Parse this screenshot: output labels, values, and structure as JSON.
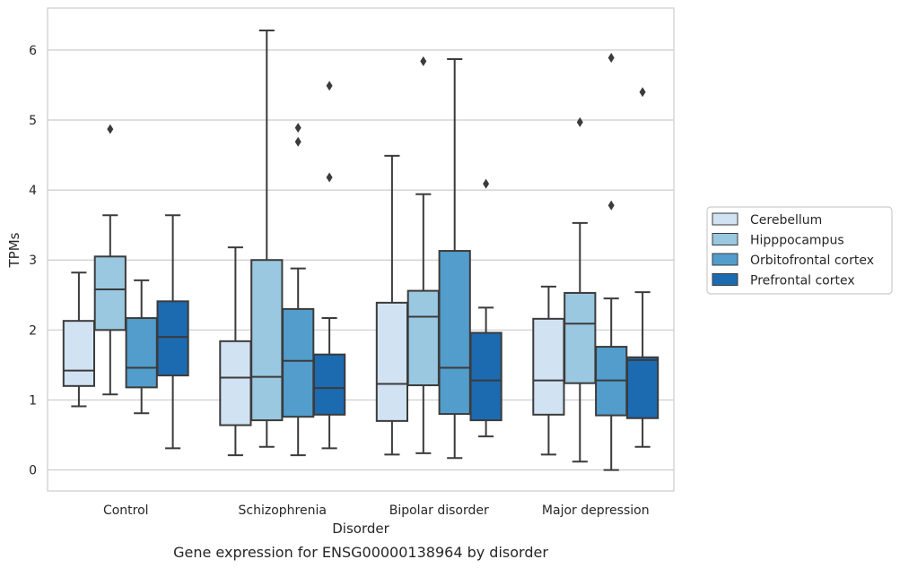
{
  "chart_data": {
    "type": "box",
    "title": "",
    "caption": "Gene expression for ENSG00000138964 by disorder",
    "xlabel": "Disorder",
    "ylabel": "TPMs",
    "ylim": [
      -0.3,
      6.6
    ],
    "yticks": [
      0,
      1,
      2,
      3,
      4,
      5,
      6
    ],
    "grid": "horizontal",
    "legend_position": "right",
    "categories": [
      "Control",
      "Schizophrenia",
      "Bipolar disorder",
      "Major depression"
    ],
    "series": [
      {
        "name": "Cerebellum",
        "color": "#d1e2f3",
        "boxes": [
          {
            "whisker_low": 0.91,
            "q1": 1.2,
            "median": 1.42,
            "q3": 2.13,
            "whisker_high": 2.82,
            "outliers": []
          },
          {
            "whisker_low": 0.21,
            "q1": 0.64,
            "median": 1.32,
            "q3": 1.84,
            "whisker_high": 3.18,
            "outliers": []
          },
          {
            "whisker_low": 0.22,
            "q1": 0.7,
            "median": 1.23,
            "q3": 2.39,
            "whisker_high": 4.49,
            "outliers": []
          },
          {
            "whisker_low": 0.22,
            "q1": 0.79,
            "median": 1.28,
            "q3": 2.16,
            "whisker_high": 2.62,
            "outliers": []
          }
        ]
      },
      {
        "name": "Hipppocampus",
        "color": "#9ac8e0",
        "boxes": [
          {
            "whisker_low": 1.08,
            "q1": 2.0,
            "median": 2.58,
            "q3": 3.05,
            "whisker_high": 3.64,
            "outliers": [
              4.87
            ]
          },
          {
            "whisker_low": 0.33,
            "q1": 0.71,
            "median": 1.33,
            "q3": 3.0,
            "whisker_high": 6.28,
            "outliers": []
          },
          {
            "whisker_low": 0.24,
            "q1": 1.21,
            "median": 2.19,
            "q3": 2.56,
            "whisker_high": 3.94,
            "outliers": [
              5.84
            ]
          },
          {
            "whisker_low": 0.12,
            "q1": 1.24,
            "median": 2.09,
            "q3": 2.53,
            "whisker_high": 3.53,
            "outliers": [
              4.97
            ]
          }
        ]
      },
      {
        "name": "Orbitofrontal cortex",
        "color": "#529dcc",
        "boxes": [
          {
            "whisker_low": 0.81,
            "q1": 1.18,
            "median": 1.46,
            "q3": 2.17,
            "whisker_high": 2.71,
            "outliers": []
          },
          {
            "whisker_low": 0.21,
            "q1": 0.76,
            "median": 1.56,
            "q3": 2.3,
            "whisker_high": 2.88,
            "outliers": [
              4.69,
              4.89
            ]
          },
          {
            "whisker_low": 0.17,
            "q1": 0.8,
            "median": 1.46,
            "q3": 3.13,
            "whisker_high": 5.87,
            "outliers": []
          },
          {
            "whisker_low": 0.0,
            "q1": 0.78,
            "median": 1.28,
            "q3": 1.76,
            "whisker_high": 2.45,
            "outliers": [
              3.78,
              5.89
            ]
          }
        ]
      },
      {
        "name": "Prefrontal cortex",
        "color": "#1c6aaf",
        "boxes": [
          {
            "whisker_low": 0.31,
            "q1": 1.35,
            "median": 1.9,
            "q3": 2.41,
            "whisker_high": 3.64,
            "outliers": []
          },
          {
            "whisker_low": 0.31,
            "q1": 0.79,
            "median": 1.17,
            "q3": 1.65,
            "whisker_high": 2.17,
            "outliers": [
              4.18,
              5.49
            ]
          },
          {
            "whisker_low": 0.48,
            "q1": 0.71,
            "median": 1.28,
            "q3": 1.96,
            "whisker_high": 2.32,
            "outliers": [
              4.09
            ]
          },
          {
            "whisker_low": 0.33,
            "q1": 0.74,
            "median": 1.57,
            "q3": 1.61,
            "whisker_high": 2.54,
            "outliers": [
              5.4
            ]
          }
        ]
      }
    ]
  }
}
